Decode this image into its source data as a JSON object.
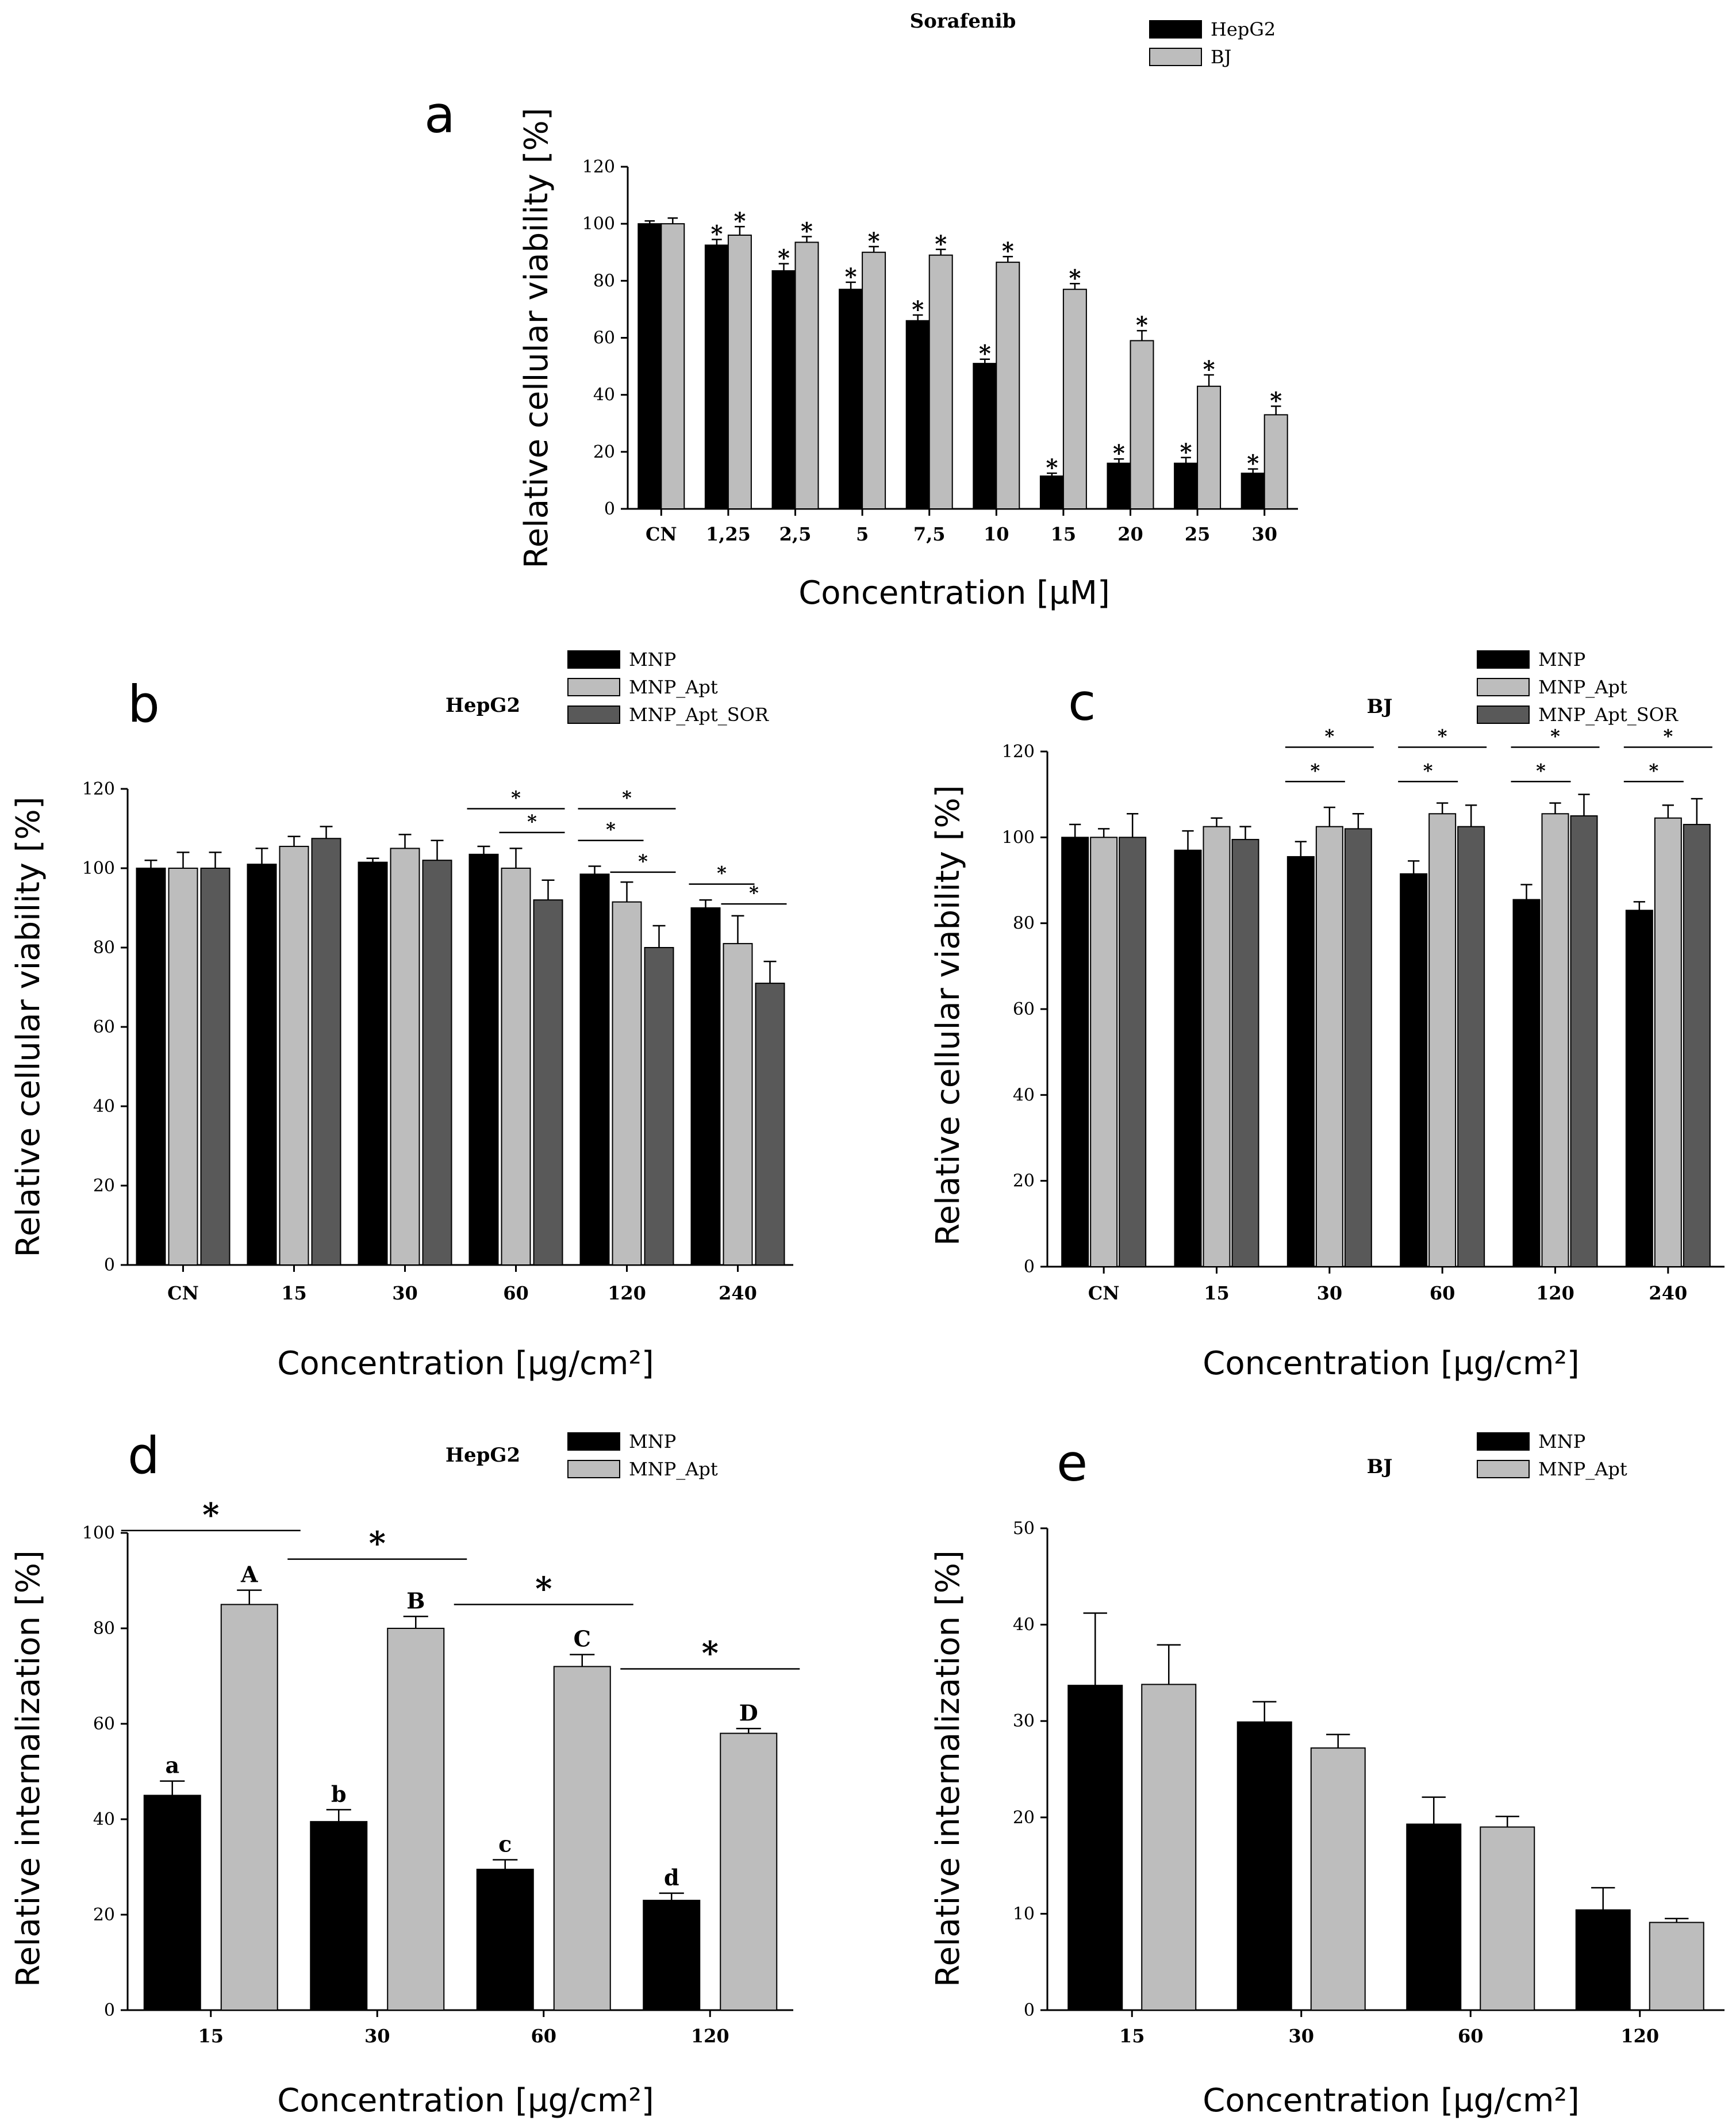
{
  "colors": {
    "black": "#000000",
    "light_gray": "#bdbdbd",
    "dark_gray": "#595959",
    "axis": "#000000"
  },
  "chart_data": [
    {
      "id": "a",
      "type": "bar",
      "panel_letter": "a",
      "title": "Sorafenib",
      "xlabel": "Concentration [µM]",
      "ylabel": "Relative cellular viability [%]",
      "ylim": [
        0,
        120
      ],
      "yticks": [
        "0",
        "20",
        "40",
        "60",
        "80",
        "100",
        "120"
      ],
      "categories": [
        "CN",
        "1,25",
        "2,5",
        "5",
        "7,5",
        "10",
        "15",
        "20",
        "25",
        "30"
      ],
      "series": [
        {
          "name": "HepG2",
          "color": "#000000",
          "values": [
            100,
            92.5,
            83.5,
            77,
            66,
            51,
            11.5,
            16,
            16,
            12.5
          ],
          "errors": [
            1,
            2,
            2.5,
            2.5,
            2,
            1.5,
            1,
            1.5,
            2,
            1.5
          ],
          "marks": [
            "",
            "*",
            "*",
            "*",
            "*",
            "*",
            "*",
            "*",
            "*",
            "*"
          ]
        },
        {
          "name": "BJ",
          "color": "#bdbdbd",
          "values": [
            100,
            96,
            93.5,
            90,
            89,
            86.5,
            77,
            59,
            43,
            33
          ],
          "errors": [
            2,
            3,
            2,
            2,
            2,
            2,
            2,
            3.5,
            4,
            3
          ],
          "marks": [
            "",
            "*",
            "*",
            "*",
            "*",
            "*",
            "*",
            "*",
            "*",
            "*"
          ]
        }
      ],
      "legend_position": "top-right"
    },
    {
      "id": "b",
      "type": "bar",
      "panel_letter": "b",
      "title": "HepG2",
      "xlabel": "Concentration [µg/cm²]",
      "ylabel": "Relative cellular viability [%]",
      "ylim": [
        0,
        120
      ],
      "yticks": [
        "0",
        "20",
        "40",
        "60",
        "80",
        "100",
        "120"
      ],
      "categories": [
        "CN",
        "15",
        "30",
        "60",
        "120",
        "240"
      ],
      "series": [
        {
          "name": "MNP",
          "color": "#000000",
          "values": [
            100,
            101,
            101.5,
            103.5,
            98.5,
            90
          ],
          "errors": [
            2,
            4,
            1,
            2,
            2,
            2
          ]
        },
        {
          "name": "MNP_Apt",
          "color": "#bdbdbd",
          "values": [
            100,
            105.5,
            105,
            100,
            91.5,
            81
          ],
          "errors": [
            4,
            2.5,
            3.5,
            5,
            5,
            7
          ]
        },
        {
          "name": "MNP_Apt_SOR",
          "color": "#595959",
          "values": [
            100,
            107.5,
            102,
            92,
            80,
            71
          ],
          "errors": [
            4,
            3,
            5,
            5,
            5.5,
            5.5
          ]
        }
      ],
      "significance": [
        {
          "group": 3,
          "from": 0,
          "to": 2,
          "y": 115,
          "label": "*"
        },
        {
          "group": 3,
          "from": 1,
          "to": 2,
          "y": 109,
          "label": "*"
        },
        {
          "group": 4,
          "from": 0,
          "to": 2,
          "y": 115,
          "label": "*"
        },
        {
          "group": 4,
          "from": 0,
          "to": 1,
          "y": 107,
          "label": "*"
        },
        {
          "group": 4,
          "from": 1,
          "to": 2,
          "y": 99,
          "label": "*"
        },
        {
          "group": 5,
          "from": 0,
          "to": 1,
          "y": 96,
          "label": "*"
        },
        {
          "group": 5,
          "from": 1,
          "to": 2,
          "y": 91,
          "label": "*"
        }
      ],
      "legend_position": "top-right"
    },
    {
      "id": "c",
      "type": "bar",
      "panel_letter": "c",
      "title": "BJ",
      "xlabel": "Concentration [µg/cm²]",
      "ylabel": "Relative cellular viability [%]",
      "ylim": [
        0,
        120
      ],
      "yticks": [
        "0",
        "20",
        "40",
        "60",
        "80",
        "100",
        "120"
      ],
      "categories": [
        "CN",
        "15",
        "30",
        "60",
        "120",
        "240"
      ],
      "series": [
        {
          "name": "MNP",
          "color": "#000000",
          "values": [
            100,
            97,
            95.5,
            91.5,
            85.5,
            83
          ],
          "errors": [
            3,
            4.5,
            3.5,
            3,
            3.5,
            2
          ]
        },
        {
          "name": "MNP_Apt",
          "color": "#bdbdbd",
          "values": [
            100,
            102.5,
            102.5,
            105.5,
            105.5,
            104.5
          ],
          "errors": [
            2,
            2,
            4.5,
            2.5,
            2.5,
            3
          ]
        },
        {
          "name": "MNP_Apt_SOR",
          "color": "#595959",
          "values": [
            100,
            99.5,
            102,
            102.5,
            105,
            103
          ],
          "errors": [
            5.5,
            3,
            3.5,
            5,
            5,
            6
          ]
        }
      ],
      "significance": [
        {
          "group": 2,
          "from": 0,
          "to": 2,
          "y": 121,
          "label": "*"
        },
        {
          "group": 2,
          "from": 0,
          "to": 1,
          "y": 113,
          "label": "*"
        },
        {
          "group": 3,
          "from": 0,
          "to": 2,
          "y": 121,
          "label": "*"
        },
        {
          "group": 3,
          "from": 0,
          "to": 1,
          "y": 113,
          "label": "*"
        },
        {
          "group": 4,
          "from": 0,
          "to": 2,
          "y": 121,
          "label": "*"
        },
        {
          "group": 4,
          "from": 0,
          "to": 1,
          "y": 113,
          "label": "*"
        },
        {
          "group": 5,
          "from": 0,
          "to": 2,
          "y": 121,
          "label": "*"
        },
        {
          "group": 5,
          "from": 0,
          "to": 1,
          "y": 113,
          "label": "*"
        }
      ],
      "legend_position": "top-right"
    },
    {
      "id": "d",
      "type": "bar",
      "panel_letter": "d",
      "title": "HepG2",
      "xlabel": "Concentration [µg/cm²]",
      "ylabel": "Relative internalization [%]",
      "ylim": [
        0,
        100
      ],
      "yticks": [
        "0",
        "20",
        "40",
        "60",
        "80",
        "100"
      ],
      "categories": [
        "15",
        "30",
        "60",
        "120"
      ],
      "series": [
        {
          "name": "MNP",
          "color": "#000000",
          "values": [
            45,
            39.5,
            29.5,
            23
          ],
          "errors": [
            3,
            2.5,
            2,
            1.5
          ],
          "marks": [
            "a",
            "b",
            "c",
            "d"
          ]
        },
        {
          "name": "MNP_Apt",
          "color": "#bdbdbd",
          "values": [
            85,
            80,
            72,
            58
          ],
          "errors": [
            3,
            2.5,
            2.5,
            1
          ],
          "marks": [
            "A",
            "B",
            "C",
            "D"
          ]
        }
      ],
      "significance": [
        {
          "group": 0,
          "from": 0,
          "to": 1,
          "y": 100.5,
          "label": "*"
        },
        {
          "group": 1,
          "from": 0,
          "to": 1,
          "y": 94.5,
          "label": "*"
        },
        {
          "group": 2,
          "from": 0,
          "to": 1,
          "y": 85,
          "label": "*"
        },
        {
          "group": 3,
          "from": 0,
          "to": 1,
          "y": 71.5,
          "label": "*"
        }
      ],
      "legend_position": "top-right"
    },
    {
      "id": "e",
      "type": "bar",
      "panel_letter": "e",
      "title": "BJ",
      "xlabel": "Concentration [µg/cm²]",
      "ylabel": "Relative internalization [%]",
      "ylim": [
        0,
        50
      ],
      "yticks": [
        "0",
        "10",
        "20",
        "30",
        "40",
        "50"
      ],
      "categories": [
        "15",
        "30",
        "60",
        "120"
      ],
      "series": [
        {
          "name": "MNP",
          "color": "#000000",
          "values": [
            33.7,
            29.9,
            19.3,
            10.4
          ],
          "errors": [
            7.5,
            2.1,
            2.8,
            2.3
          ]
        },
        {
          "name": "MNP_Apt",
          "color": "#bdbdbd",
          "values": [
            33.8,
            27.2,
            19,
            9.1
          ],
          "errors": [
            4.1,
            1.4,
            1.1,
            0.4
          ]
        }
      ],
      "legend_position": "top-right"
    }
  ]
}
